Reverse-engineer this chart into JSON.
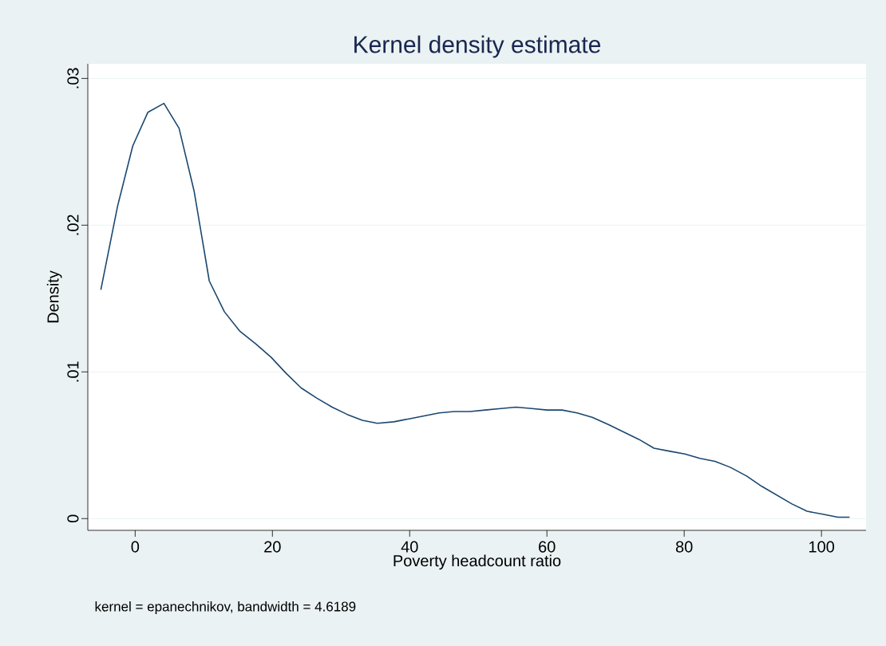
{
  "chart_data": {
    "type": "line",
    "title": "Kernel density estimate",
    "xlabel": "Poverty headcount ratio",
    "ylabel": "Density",
    "annotations": [
      "kernel = epanechnikov, bandwidth = 4.6189"
    ],
    "x": [
      -5,
      -2.56,
      -0.35,
      1.86,
      4.19,
      6.4,
      8.6,
      10.8,
      13.0,
      15.2,
      17.6,
      19.8,
      22.0,
      24.2,
      26.5,
      28.7,
      30.9,
      33.1,
      35.3,
      37.7,
      39.9,
      42.1,
      44.3,
      46.5,
      48.8,
      51.0,
      53.3,
      55.5,
      57.8,
      60.0,
      62.2,
      64.4,
      66.6,
      69.0,
      71.2,
      73.4,
      75.6,
      77.8,
      80.1,
      82.3,
      84.5,
      86.7,
      89.1,
      91.3,
      93.5,
      95.7,
      97.9,
      100.2,
      102.4,
      104.1
    ],
    "series": [
      {
        "color": "#1a476f",
        "values": [
          0.0156,
          0.0213,
          0.0254,
          0.0277,
          0.0283,
          0.0266,
          0.0223,
          0.0162,
          0.0141,
          0.0128,
          0.0119,
          0.011,
          0.0099,
          0.0089,
          0.0082,
          0.0076,
          0.0071,
          0.0067,
          0.0065,
          0.0066,
          0.0068,
          0.007,
          0.0072,
          0.0073,
          0.0073,
          0.0074,
          0.0075,
          0.0076,
          0.0075,
          0.0074,
          0.0074,
          0.0072,
          0.0069,
          0.0064,
          0.0059,
          0.0054,
          0.0048,
          0.0046,
          0.0044,
          0.0041,
          0.0039,
          0.0035,
          0.0029,
          0.0022,
          0.0016,
          0.001,
          0.0005,
          0.0003,
          0.0001,
          0.0001
        ]
      }
    ],
    "xlim": [
      -6.9,
      106.5
    ],
    "ylim": [
      -0.0008,
      0.031
    ],
    "xticks": [
      0,
      20,
      40,
      60,
      80,
      100
    ],
    "yticks": [
      0,
      {
        "value": 0.01,
        "label": ".01"
      },
      {
        "value": 0.02,
        "label": ".02"
      },
      {
        "value": 0.03,
        "label": ".03"
      }
    ],
    "grid": "y"
  }
}
